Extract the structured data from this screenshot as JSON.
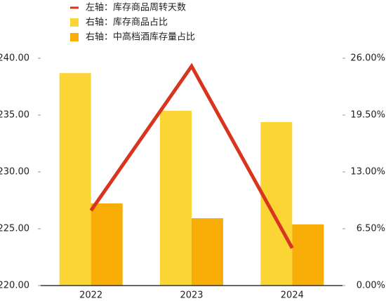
{
  "chart_data": {
    "type": "combo",
    "categories": [
      "2022",
      "2023",
      "2024"
    ],
    "series": [
      {
        "name": "左轴：库存商品周转天数",
        "type": "line",
        "color": "#d9341f",
        "values": [
          226.6,
          239.3,
          223.3
        ]
      },
      {
        "name": "右轴：库存商品占比",
        "type": "bar",
        "axis": "y2",
        "color": "#fbd535",
        "values": [
          24.3,
          20.0,
          18.7
        ]
      },
      {
        "name": "右轴：中高档酒库存量占比",
        "type": "bar",
        "axis": "y2",
        "color": "#f9ad07",
        "values": [
          9.4,
          7.7,
          7.0
        ]
      }
    ],
    "ylim": [
      220,
      240
    ],
    "yticks": [
      {
        "value": 220,
        "label": "220.00"
      },
      {
        "value": 225,
        "label": "225.00"
      },
      {
        "value": 230,
        "label": "230.00"
      },
      {
        "value": 235,
        "label": "235.00"
      },
      {
        "value": 240,
        "label": "240.00"
      }
    ],
    "y2lim": [
      0,
      26
    ],
    "y2ticks": [
      {
        "value": 0,
        "label": "0.00%"
      },
      {
        "value": 6.5,
        "label": "6.50%"
      },
      {
        "value": 13,
        "label": "13.00%"
      },
      {
        "value": 19.5,
        "label": "19.50%"
      },
      {
        "value": 26,
        "label": "26.00%"
      }
    ],
    "legend": "top-left"
  }
}
